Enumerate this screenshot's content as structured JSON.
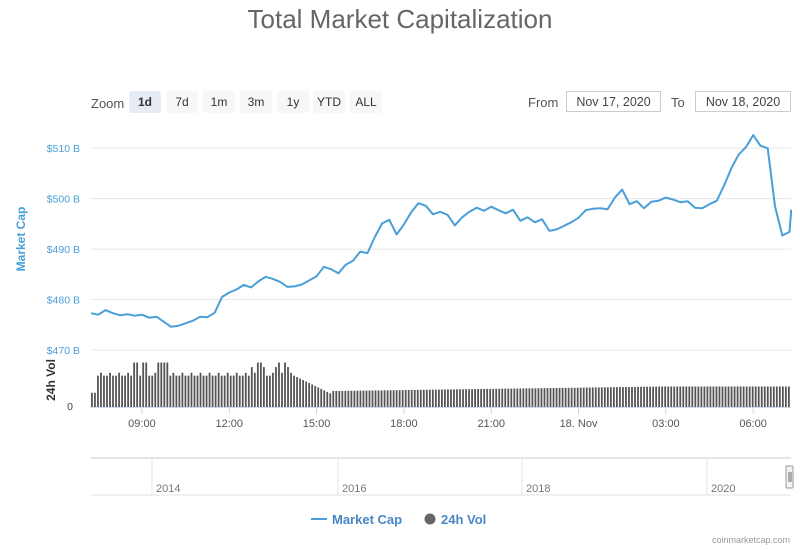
{
  "title": "Total Market Capitalization",
  "zoom": {
    "label": "Zoom",
    "buttons": [
      "1d",
      "7d",
      "1m",
      "3m",
      "1y",
      "YTD",
      "ALL"
    ],
    "active": "1d"
  },
  "range": {
    "from_label": "From",
    "from": "Nov 17, 2020",
    "to_label": "To",
    "to": "Nov 18, 2020"
  },
  "colors": {
    "market_cap": "#4a9fd8",
    "volume": "#555555",
    "grid": "#e6e6e6"
  },
  "chart_data": {
    "type": "line",
    "ylabel": "Market Cap",
    "y2label": "24h Vol",
    "ylim": [
      470,
      514
    ],
    "yticks": [
      "$470 B",
      "$480 B",
      "$490 B",
      "$500 B",
      "$510 B"
    ],
    "y2ticks": [
      "0"
    ],
    "x_start_hour": 7.25,
    "x_end_hour": 31.3,
    "xtick_labels": [
      "09:00",
      "12:00",
      "15:00",
      "18:00",
      "21:00",
      "18. Nov",
      "03:00",
      "06:00"
    ],
    "xtick_hours": [
      9,
      12,
      15,
      18,
      21,
      24,
      27,
      30
    ],
    "series": [
      {
        "name": "Market Cap",
        "unit": "billion USD",
        "points": [
          [
            7.25,
            477.3
          ],
          [
            7.5,
            477.0
          ],
          [
            7.75,
            477.9
          ],
          [
            8.0,
            477.3
          ],
          [
            8.25,
            476.9
          ],
          [
            8.5,
            477.1
          ],
          [
            8.75,
            476.8
          ],
          [
            9.0,
            477.0
          ],
          [
            9.25,
            476.4
          ],
          [
            9.5,
            476.6
          ],
          [
            9.75,
            475.6
          ],
          [
            10.0,
            474.6
          ],
          [
            10.25,
            474.8
          ],
          [
            10.5,
            475.3
          ],
          [
            10.75,
            475.8
          ],
          [
            11.0,
            476.6
          ],
          [
            11.25,
            476.5
          ],
          [
            11.5,
            477.4
          ],
          [
            11.75,
            480.5
          ],
          [
            12.0,
            481.4
          ],
          [
            12.25,
            482.0
          ],
          [
            12.5,
            482.9
          ],
          [
            12.75,
            482.4
          ],
          [
            13.0,
            483.6
          ],
          [
            13.25,
            484.5
          ],
          [
            13.5,
            484.1
          ],
          [
            13.75,
            483.5
          ],
          [
            14.0,
            482.5
          ],
          [
            14.25,
            482.6
          ],
          [
            14.5,
            483.0
          ],
          [
            14.75,
            483.8
          ],
          [
            15.0,
            484.6
          ],
          [
            15.25,
            486.5
          ],
          [
            15.5,
            486.0
          ],
          [
            15.75,
            485.2
          ],
          [
            16.0,
            486.9
          ],
          [
            16.25,
            487.7
          ],
          [
            16.5,
            489.5
          ],
          [
            16.75,
            489.2
          ],
          [
            17.0,
            492.4
          ],
          [
            17.25,
            495.1
          ],
          [
            17.5,
            495.8
          ],
          [
            17.75,
            492.9
          ],
          [
            18.0,
            494.9
          ],
          [
            18.25,
            497.3
          ],
          [
            18.5,
            499.1
          ],
          [
            18.75,
            498.6
          ],
          [
            19.0,
            496.9
          ],
          [
            19.25,
            497.4
          ],
          [
            19.5,
            496.8
          ],
          [
            19.75,
            494.7
          ],
          [
            20.0,
            496.3
          ],
          [
            20.25,
            497.4
          ],
          [
            20.5,
            498.2
          ],
          [
            20.75,
            497.6
          ],
          [
            21.0,
            498.4
          ],
          [
            21.25,
            497.7
          ],
          [
            21.5,
            497.1
          ],
          [
            21.75,
            497.8
          ],
          [
            22.0,
            495.6
          ],
          [
            22.25,
            496.3
          ],
          [
            22.5,
            495.3
          ],
          [
            22.75,
            495.9
          ],
          [
            23.0,
            493.6
          ],
          [
            23.25,
            493.9
          ],
          [
            23.5,
            494.6
          ],
          [
            23.75,
            495.3
          ],
          [
            24.0,
            496.2
          ],
          [
            24.25,
            497.7
          ],
          [
            24.5,
            498.0
          ],
          [
            24.75,
            498.1
          ],
          [
            25.0,
            497.9
          ],
          [
            25.25,
            500.2
          ],
          [
            25.5,
            501.8
          ],
          [
            25.75,
            498.9
          ],
          [
            26.0,
            499.5
          ],
          [
            26.25,
            498.1
          ],
          [
            26.5,
            499.4
          ],
          [
            26.75,
            499.6
          ],
          [
            27.0,
            500.2
          ],
          [
            27.25,
            499.8
          ],
          [
            27.5,
            499.3
          ],
          [
            27.75,
            499.5
          ],
          [
            28.0,
            498.2
          ],
          [
            28.25,
            498.1
          ],
          [
            28.5,
            498.9
          ],
          [
            28.75,
            499.6
          ],
          [
            29.0,
            502.6
          ],
          [
            29.25,
            506.0
          ],
          [
            29.5,
            508.7
          ],
          [
            29.75,
            510.2
          ],
          [
            30.0,
            512.6
          ],
          [
            30.25,
            510.5
          ],
          [
            30.5,
            510.0
          ],
          [
            30.75,
            498.5
          ],
          [
            31.0,
            492.7
          ],
          [
            31.25,
            493.4
          ],
          [
            31.5,
            497.2
          ],
          [
            31.75,
            497.6
          ],
          [
            32.0,
            497.8
          ]
        ]
      },
      {
        "name": "24h Vol",
        "unit": "relative",
        "spike_hours": [
          8.75,
          9.05,
          9.55,
          9.75,
          12.75,
          13.0,
          13.6,
          13.9
        ]
      }
    ],
    "navigator_years": [
      "2014",
      "2016",
      "2018",
      "2020"
    ],
    "legend": [
      "Market Cap",
      "24h Vol"
    ],
    "legend_position": "bottom-center"
  },
  "credits": "coinmarketcap.com"
}
